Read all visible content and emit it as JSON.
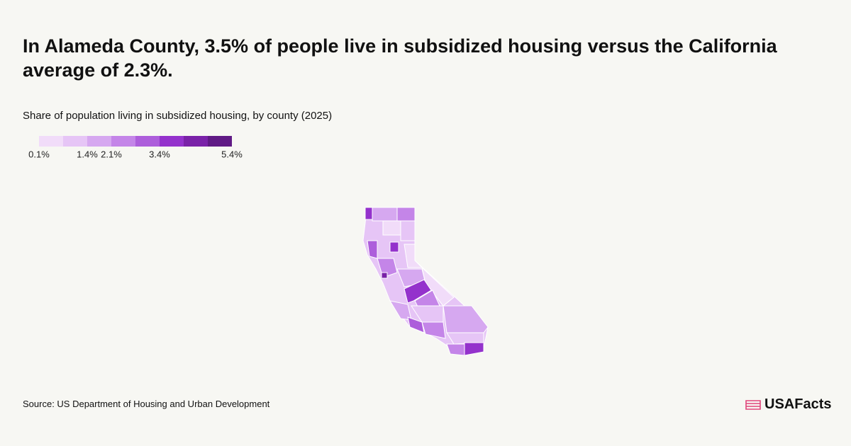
{
  "header": {
    "title": "In Alameda County, 3.5% of people live in subsidized housing versus the California average of 2.3%.",
    "subtitle": "Share of population living in subsidized housing, by county (2025)"
  },
  "legend": {
    "colors": [
      "#f1dcf9",
      "#e6c5f6",
      "#d6a8f0",
      "#c485e8",
      "#ad5edb",
      "#9432cc",
      "#7a22a8",
      "#601a85"
    ],
    "labels": [
      "0.1%",
      "1.4%",
      "2.1%",
      "3.4%",
      "5.4%"
    ]
  },
  "footer": {
    "source": "Source: US Department of Housing and Urban Development",
    "brand": "USAFacts"
  }
}
